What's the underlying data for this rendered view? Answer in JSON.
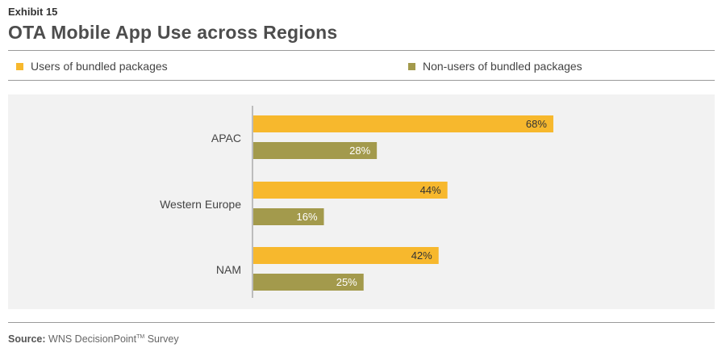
{
  "header": {
    "exhibit": "Exhibit 15",
    "title": "OTA Mobile App Use across Regions"
  },
  "legend": {
    "users_label": "Users of bundled packages",
    "nonusers_label": "Non-users of bundled packages"
  },
  "colors": {
    "users": "#f7b82d",
    "nonusers": "#a39a4c",
    "axis": "#888888",
    "plot_bg": "#f2f2f2"
  },
  "chart_data": {
    "type": "bar",
    "orientation": "horizontal",
    "categories": [
      "APAC",
      "Western Europe",
      "NAM"
    ],
    "series": [
      {
        "name": "Users of bundled packages",
        "values": [
          68,
          44,
          42
        ],
        "labels": [
          "68%",
          "44%",
          "42%"
        ]
      },
      {
        "name": "Non-users of bundled packages",
        "values": [
          28,
          16,
          25
        ],
        "labels": [
          "28%",
          "16%",
          "25%"
        ]
      }
    ],
    "xlim": [
      0,
      100
    ],
    "grid": false,
    "legend_position": "top"
  },
  "footer": {
    "source_label": "Source:",
    "source_text": "WNS DecisionPoint",
    "source_tm": "TM",
    "source_suffix": "Survey"
  }
}
